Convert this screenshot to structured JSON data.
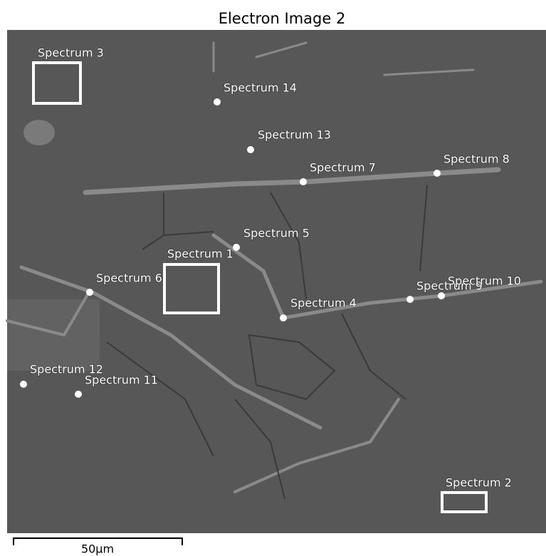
{
  "title": "Electron Image 2",
  "spectra": [
    "Spectrum 3",
    "Spectrum 14",
    "Spectrum 13",
    "Spectrum 7",
    "Spectrum 8",
    "Spectrum 5",
    "Spectrum 1",
    "Spectrum 6",
    "Spectrum 4",
    "Spectrum 9",
    "Spectrum 10",
    "Spectrum 12",
    "Spectrum 11",
    "Spectrum 2"
  ],
  "scale_bar": "50µm"
}
